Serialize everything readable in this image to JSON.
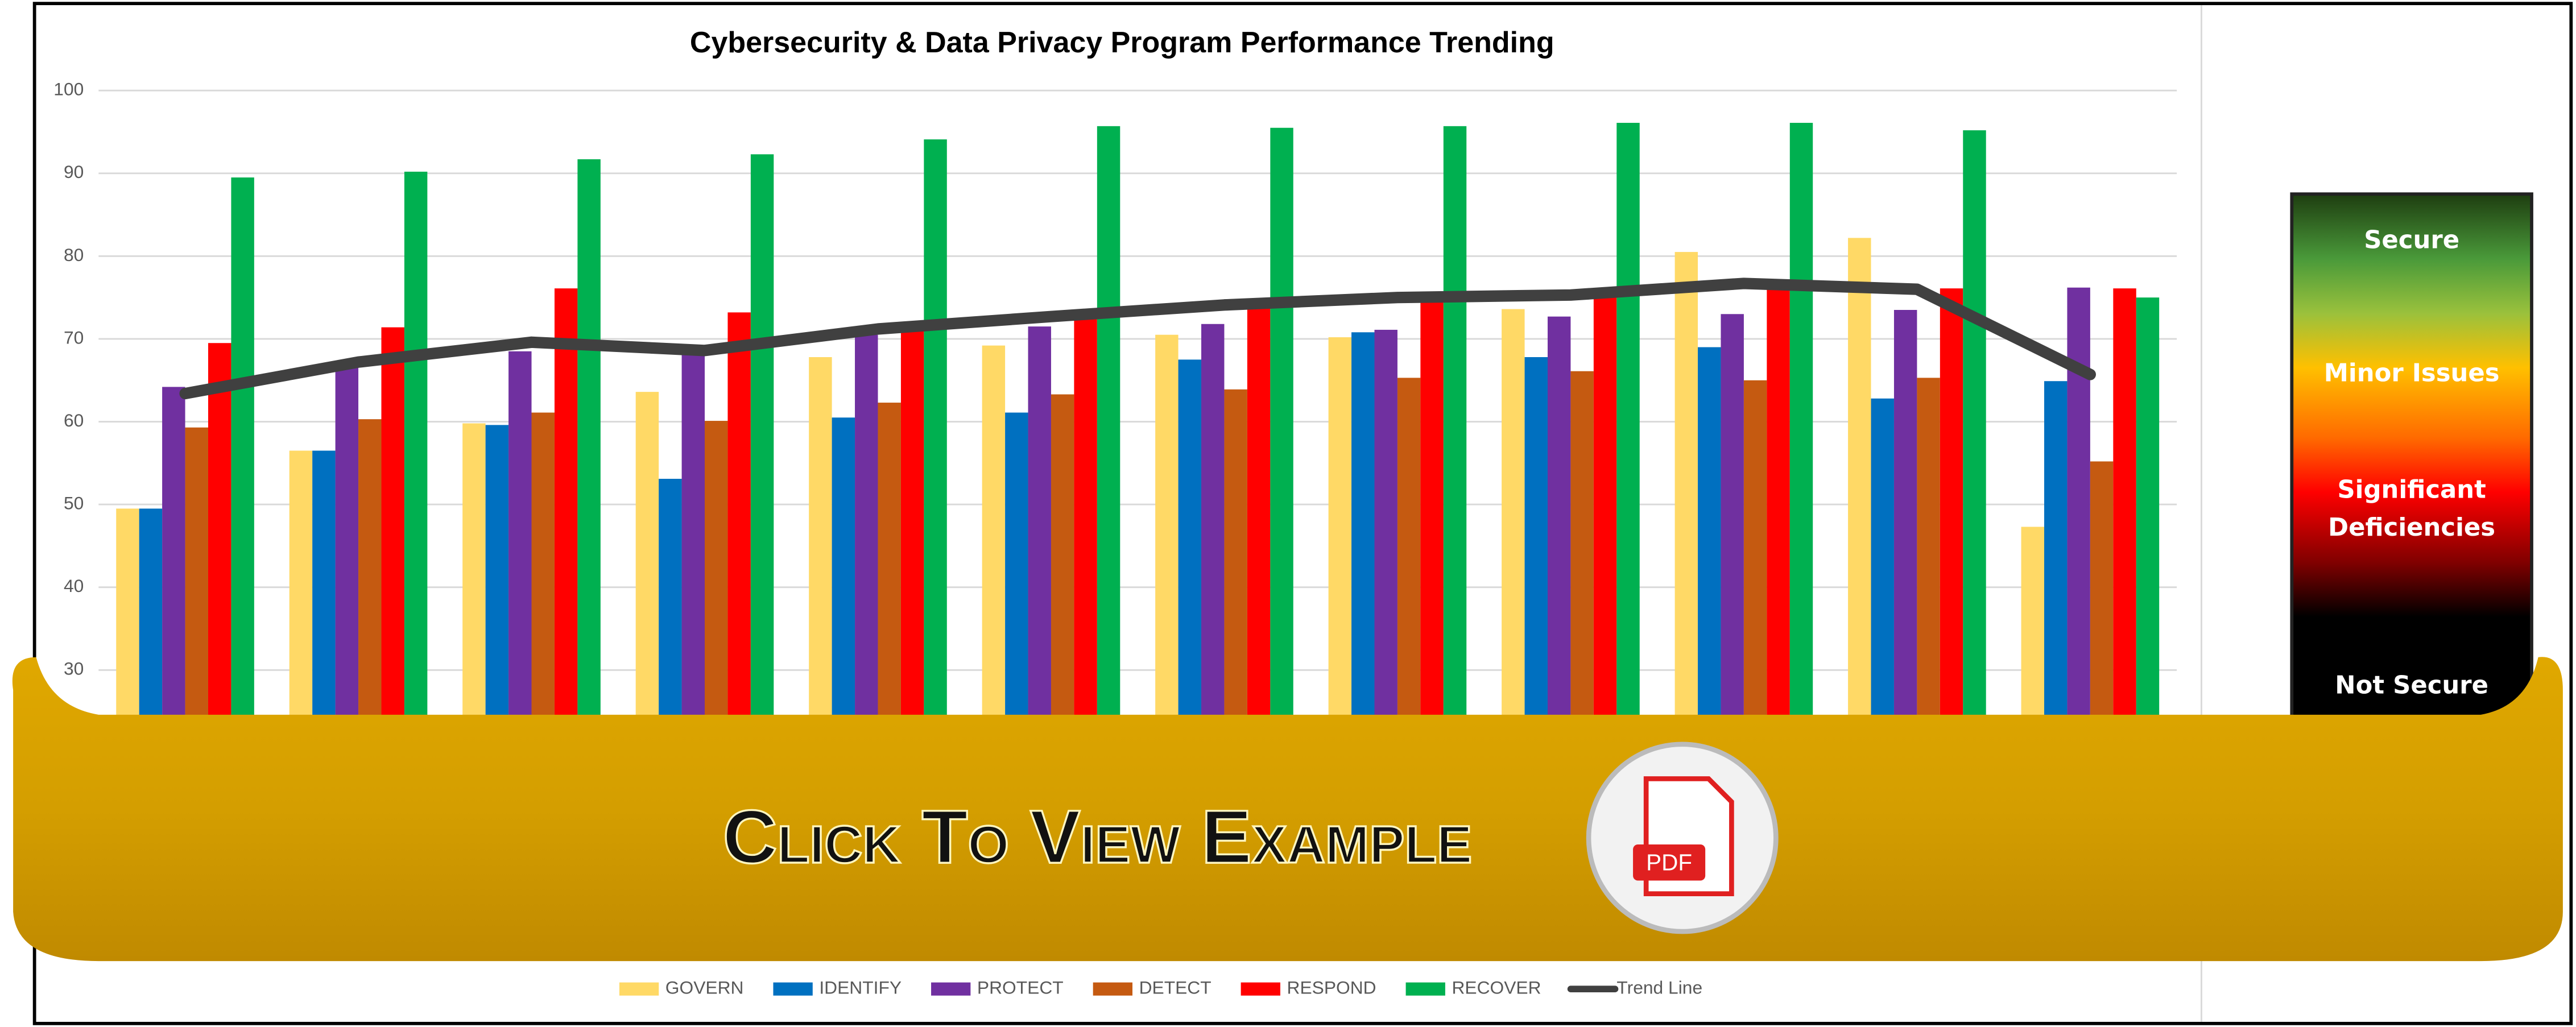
{
  "chart_data": {
    "type": "bar",
    "title": "Cybersecurity & Data Privacy Program Performance Trending",
    "categories": [
      null,
      null,
      null,
      null,
      null,
      null,
      null,
      null,
      null,
      null,
      null,
      null
    ],
    "series": [
      {
        "name": "GOVERN",
        "color": "#ffd966",
        "values": [
          49.5,
          56.5,
          59.8,
          63.6,
          67.8,
          69.2,
          70.5,
          70.2,
          73.6,
          80.5,
          82.2,
          47.3
        ]
      },
      {
        "name": "IDENTIFY",
        "color": "#0070c0",
        "values": [
          49.5,
          56.5,
          59.6,
          53.1,
          60.5,
          61.1,
          67.5,
          70.8,
          67.8,
          69.0,
          62.8,
          64.9
        ]
      },
      {
        "name": "PROTECT",
        "color": "#7030a0",
        "values": [
          64.2,
          66.5,
          68.5,
          68.5,
          70.5,
          71.5,
          71.8,
          71.1,
          72.7,
          73.0,
          73.5,
          76.2
        ]
      },
      {
        "name": "DETECT",
        "color": "#c55a11",
        "values": [
          59.3,
          60.3,
          61.1,
          60.1,
          62.3,
          63.3,
          63.9,
          65.3,
          66.1,
          65.0,
          65.3,
          55.2
        ]
      },
      {
        "name": "RESPOND",
        "color": "#ff0000",
        "values": [
          69.5,
          71.4,
          76.1,
          73.2,
          71.5,
          73.5,
          74.5,
          75.5,
          75.5,
          76.5,
          76.1,
          76.1
        ]
      },
      {
        "name": "RECOVER",
        "color": "#00b050",
        "values": [
          89.5,
          90.2,
          91.7,
          92.3,
          94.1,
          95.7,
          95.5,
          95.7,
          96.1,
          96.1,
          95.2,
          75.0
        ]
      },
      {
        "name": "Trend Line",
        "type": "line",
        "color": "#404040",
        "values": [
          63.4,
          67.2,
          69.6,
          68.6,
          71.2,
          72.7,
          74.1,
          75.0,
          75.3,
          76.7,
          76.0,
          65.7
        ]
      }
    ],
    "ylim": [
      0,
      100
    ],
    "yticks": [
      30,
      40,
      50,
      60,
      70,
      80,
      90,
      100
    ],
    "grid": true,
    "legend": "bottom"
  },
  "scale": {
    "labels": [
      "Secure",
      "Minor Issues",
      "Significant Deficiencies",
      "Not Secure"
    ]
  },
  "banner": {
    "text": "Click To View Example",
    "icon_label": "PDF"
  }
}
